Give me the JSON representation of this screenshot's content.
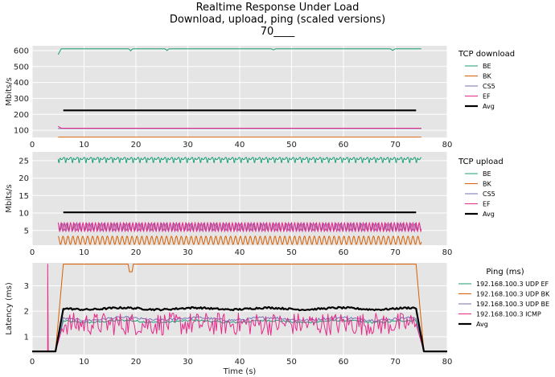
{
  "title_lines": [
    "Realtime Response Under Load",
    "Download, upload, ping (scaled versions)",
    "70____"
  ],
  "colors": {
    "plot_bg": "#e5e5e5",
    "grid": "#ffffff",
    "BE": "#1b9e77",
    "BK": "#d95f02",
    "CS5": "#7570b3",
    "EF": "#e7298a",
    "Avg": "#000000"
  },
  "chart_data": [
    {
      "type": "line",
      "id": "download",
      "title": "",
      "xlabel": "",
      "ylabel": "Mbits/s",
      "xlim": [
        0,
        80
      ],
      "ylim": [
        55,
        630
      ],
      "xticks": [
        0,
        10,
        20,
        30,
        40,
        50,
        60,
        70,
        80
      ],
      "yticks": [
        100,
        200,
        300,
        400,
        500,
        600
      ],
      "grid": true,
      "legend_title": "TCP download",
      "legend_position": "right",
      "series": [
        {
          "name": "BE",
          "color": "#1b9e77",
          "pattern": "flat-dips",
          "x_range": [
            5,
            75
          ],
          "base": 611,
          "start_value": 575,
          "dips": [
            [
              19,
              598
            ],
            [
              26,
              600
            ],
            [
              46.5,
              602
            ],
            [
              69.5,
              598
            ]
          ]
        },
        {
          "name": "BK",
          "color": "#d95f02",
          "pattern": "flat",
          "x_range": [
            5,
            75
          ],
          "base": 57
        },
        {
          "name": "CS5",
          "color": "#7570b3",
          "pattern": "flat",
          "x_range": [
            5,
            75
          ],
          "base": 111
        },
        {
          "name": "EF",
          "color": "#e7298a",
          "pattern": "flat",
          "x_range": [
            5,
            75
          ],
          "base": 113,
          "start_value": 125
        },
        {
          "name": "Avg",
          "color": "#000000",
          "pattern": "flat",
          "x_range": [
            6,
            74
          ],
          "base": 225
        }
      ]
    },
    {
      "type": "line",
      "id": "upload",
      "title": "",
      "xlabel": "",
      "ylabel": "Mbits/s",
      "xlim": [
        0,
        80
      ],
      "ylim": [
        0.8,
        27.5
      ],
      "xticks": [
        0,
        10,
        20,
        30,
        40,
        50,
        60,
        70,
        80
      ],
      "yticks": [
        5,
        10,
        15,
        20,
        25
      ],
      "grid": true,
      "legend_title": "TCP upload",
      "legend_position": "right",
      "series": [
        {
          "name": "BE",
          "color": "#1b9e77",
          "pattern": "periodic",
          "x_range": [
            5,
            75
          ],
          "base": 25.6,
          "amp": 1.2,
          "period": 1.3
        },
        {
          "name": "BK",
          "color": "#d95f02",
          "pattern": "periodic",
          "x_range": [
            5,
            75
          ],
          "base": 2.2,
          "amp": 1.2,
          "period": 0.95
        },
        {
          "name": "CS5",
          "color": "#7570b3",
          "pattern": "periodic",
          "x_range": [
            5,
            75
          ],
          "base": 6.0,
          "amp": 1.0,
          "period": 0.8
        },
        {
          "name": "EF",
          "color": "#e7298a",
          "pattern": "periodic",
          "x_range": [
            5,
            75
          ],
          "base": 6.0,
          "amp": 1.3,
          "period": 0.6
        },
        {
          "name": "Avg",
          "color": "#000000",
          "pattern": "flat",
          "x_range": [
            6,
            74
          ],
          "base": 10.2
        }
      ]
    },
    {
      "type": "line",
      "id": "ping",
      "title": "",
      "xlabel": "Time (s)",
      "ylabel": "Latency (ms)",
      "xlim": [
        0,
        80
      ],
      "ylim": [
        0.3,
        3.9
      ],
      "xticks": [
        0,
        10,
        20,
        30,
        40,
        50,
        60,
        70,
        80
      ],
      "yticks": [
        1,
        2,
        3
      ],
      "grid": true,
      "legend_title": "Ping (ms)",
      "legend_position": "right",
      "series": [
        {
          "name": "192.168.100.3 UDP EF",
          "color": "#1b9e77",
          "pattern": "ping",
          "base": 1.6,
          "amp": 0.08,
          "low": 0.42
        },
        {
          "name": "192.168.100.3 UDP BK",
          "color": "#d95f02",
          "pattern": "ping",
          "base": 3.85,
          "amp": 0.0,
          "low": 0.42,
          "dips": [
            [
              19,
              3.55
            ]
          ]
        },
        {
          "name": "192.168.100.3 UDP BE",
          "color": "#7570b3",
          "pattern": "ping",
          "base": 1.7,
          "amp": 0.1,
          "low": 0.42
        },
        {
          "name": "192.168.100.3 ICMP",
          "color": "#e7298a",
          "pattern": "ping-noisy",
          "base": 1.5,
          "amp": 0.45,
          "low": 0.42,
          "spike": [
            2.8,
            3.85
          ]
        },
        {
          "name": "Avg",
          "color": "#000000",
          "pattern": "ping",
          "base": 2.1,
          "amp": 0.07,
          "low": 0.42
        }
      ]
    }
  ]
}
